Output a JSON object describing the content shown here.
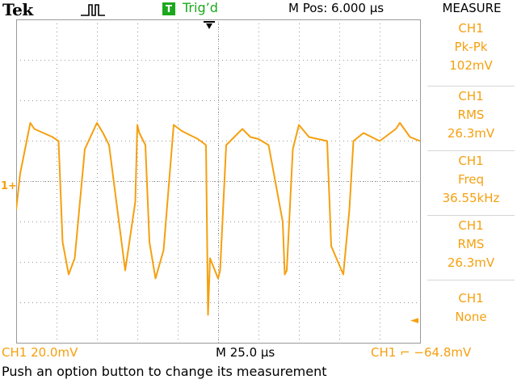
{
  "header": {
    "brand": "Tek",
    "acquisition_icon": "run-pulse-icon",
    "trigger_badge": "T",
    "trigger_status": "Trig’d",
    "horizontal_position": "M Pos: 6.000 µs"
  },
  "measure_panel": {
    "title": "MEASURE",
    "items": [
      {
        "channel": "CH1",
        "type": "Pk-Pk",
        "value": "102mV"
      },
      {
        "channel": "CH1",
        "type": "RMS",
        "value": "26.3mV"
      },
      {
        "channel": "CH1",
        "type": "Freq",
        "value": "36.55kHz"
      },
      {
        "channel": "CH1",
        "type": "RMS",
        "value": "26.3mV"
      },
      {
        "channel": "CH1",
        "type": "None",
        "value": ""
      }
    ]
  },
  "footer": {
    "channel_scale": "CH1  20.0mV",
    "time_scale": "M 25.0 µs",
    "trigger_info": "CH1 ⌐ −64.8mV",
    "message": "Push an option button to change its measurement"
  },
  "markers": {
    "channel_marker": "1+",
    "trigger_level_marker": "◄",
    "trigger_position_marker": "🠗"
  },
  "colors": {
    "trace": "#f5a00f",
    "trigger_green": "#1ca81c",
    "grid": "#9a9a9a"
  },
  "chart_data": {
    "type": "line",
    "xlabel": "",
    "ylabel": "",
    "grid": true,
    "divisions": {
      "x": 10,
      "y": 8
    },
    "channel_volts_per_div_mV": 20.0,
    "time_per_div_us": 25.0,
    "series": [
      {
        "name": "",
        "x_div": [
          0.0,
          0.1,
          0.35,
          0.45,
          0.9,
          1.05,
          1.15,
          1.3,
          1.45,
          1.7,
          2.0,
          2.15,
          2.2,
          2.3,
          2.7,
          2.95,
          3.0,
          3.05,
          3.2,
          3.3,
          3.45,
          3.65,
          3.9,
          4.1,
          4.5,
          4.7,
          4.75,
          4.8,
          5.0,
          5.05,
          5.2,
          5.6,
          5.8,
          6.0,
          6.25,
          6.6,
          6.65,
          6.7,
          6.85,
          7.0,
          7.25,
          7.7,
          7.8,
          8.1,
          8.25,
          8.35,
          8.6,
          9.0,
          9.4,
          9.5,
          9.75,
          10.0
        ],
        "y_div": [
          -0.7,
          0.2,
          1.45,
          1.3,
          1.1,
          1.0,
          -1.5,
          -2.3,
          -1.9,
          0.8,
          1.45,
          1.2,
          1.1,
          0.9,
          -2.2,
          -0.5,
          1.4,
          1.2,
          0.9,
          -1.5,
          -2.4,
          -1.7,
          1.4,
          1.25,
          1.05,
          0.9,
          -3.3,
          -1.9,
          -2.4,
          -2.2,
          0.9,
          1.3,
          1.1,
          1.05,
          0.9,
          -1.0,
          -2.3,
          -2.2,
          0.8,
          1.4,
          1.1,
          1.0,
          -1.6,
          -2.3,
          -0.7,
          1.0,
          1.2,
          1.0,
          1.3,
          1.45,
          1.1,
          1.0
        ]
      }
    ]
  }
}
